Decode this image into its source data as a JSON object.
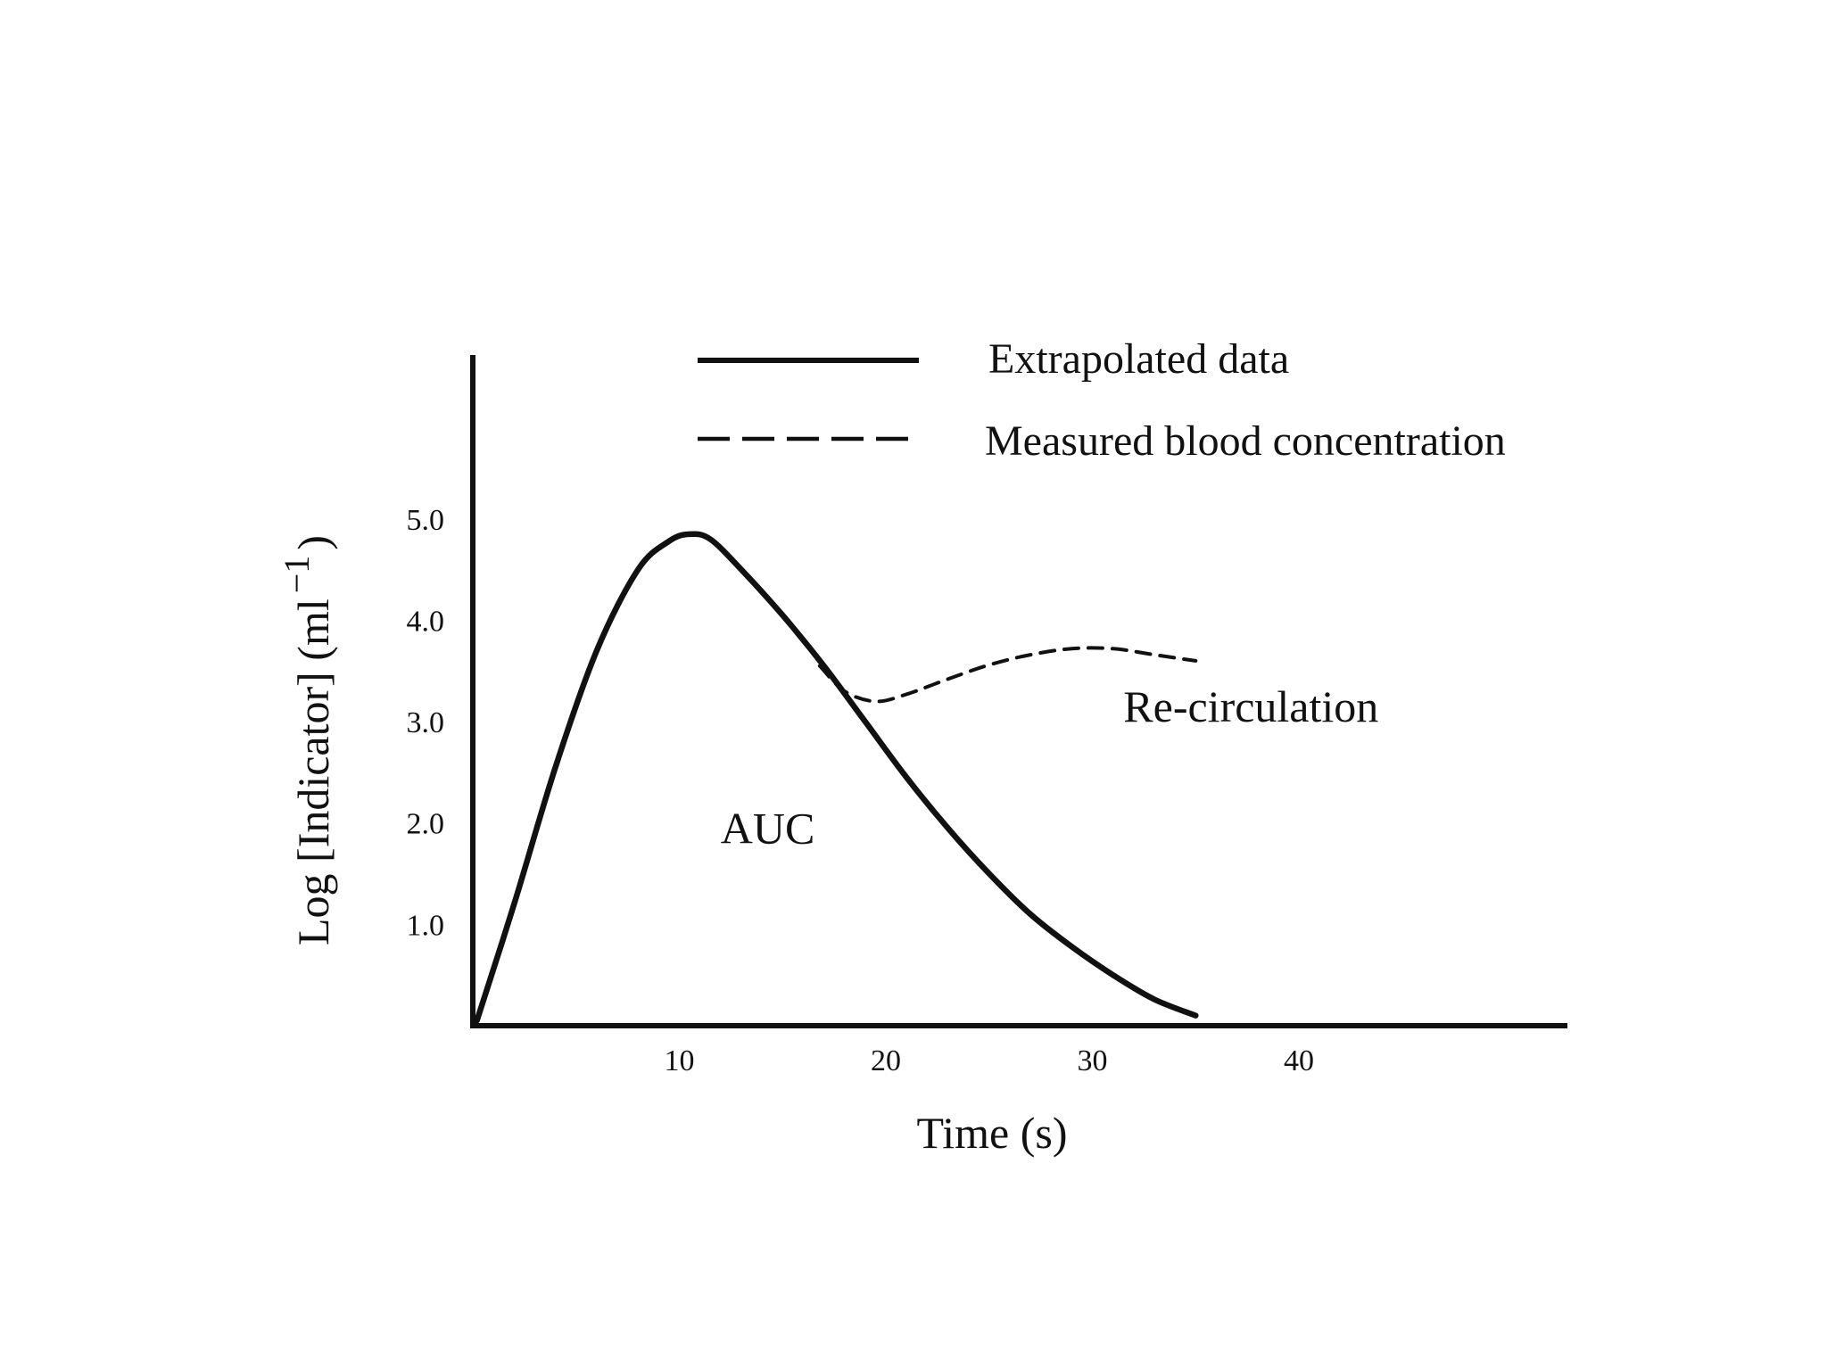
{
  "chart_data": {
    "type": "line",
    "title": "",
    "xlabel": "Time (s)",
    "ylabel": "Log [Indicator] (ml",
    "ylabel_superscript": "−1",
    "ylabel_close": ")",
    "xlim": [
      0,
      53
    ],
    "ylim": [
      0,
      6.6
    ],
    "x_ticks": [
      10,
      20,
      30,
      40
    ],
    "x_tick_labels": [
      "10",
      "20",
      "30",
      "40"
    ],
    "y_ticks": [
      1,
      2,
      3,
      4,
      5
    ],
    "y_tick_labels": [
      "1.0",
      "2.0",
      "3.0",
      "4.0",
      "5.0"
    ],
    "legend": {
      "position": "top",
      "entries": [
        {
          "label": "Extrapolated data",
          "style": "solid"
        },
        {
          "label": "Measured blood concentration",
          "style": "dashed"
        }
      ]
    },
    "series": [
      {
        "name": "Extrapolated data",
        "style": "solid",
        "x": [
          0.2,
          2,
          4,
          6,
          8,
          9.5,
          10.5,
          11.5,
          13,
          15,
          17,
          19,
          21,
          23,
          25,
          27,
          29,
          31,
          33,
          35
        ],
        "y": [
          0.05,
          1.2,
          2.55,
          3.7,
          4.5,
          4.78,
          4.85,
          4.8,
          4.5,
          4.05,
          3.55,
          3.0,
          2.45,
          1.95,
          1.5,
          1.1,
          0.78,
          0.5,
          0.26,
          0.1
        ]
      },
      {
        "name": "Measured blood concentration",
        "style": "dashed",
        "x": [
          16.8,
          18,
          19.5,
          21,
          23,
          25,
          27,
          29,
          31,
          33,
          35
        ],
        "y": [
          3.55,
          3.3,
          3.2,
          3.27,
          3.42,
          3.56,
          3.66,
          3.72,
          3.72,
          3.66,
          3.6
        ]
      }
    ],
    "annotations": [
      {
        "text": "AUC",
        "x": 12,
        "y": 1.8
      },
      {
        "text": "Re-circulation",
        "x": 31.5,
        "y": 3.0
      }
    ]
  }
}
